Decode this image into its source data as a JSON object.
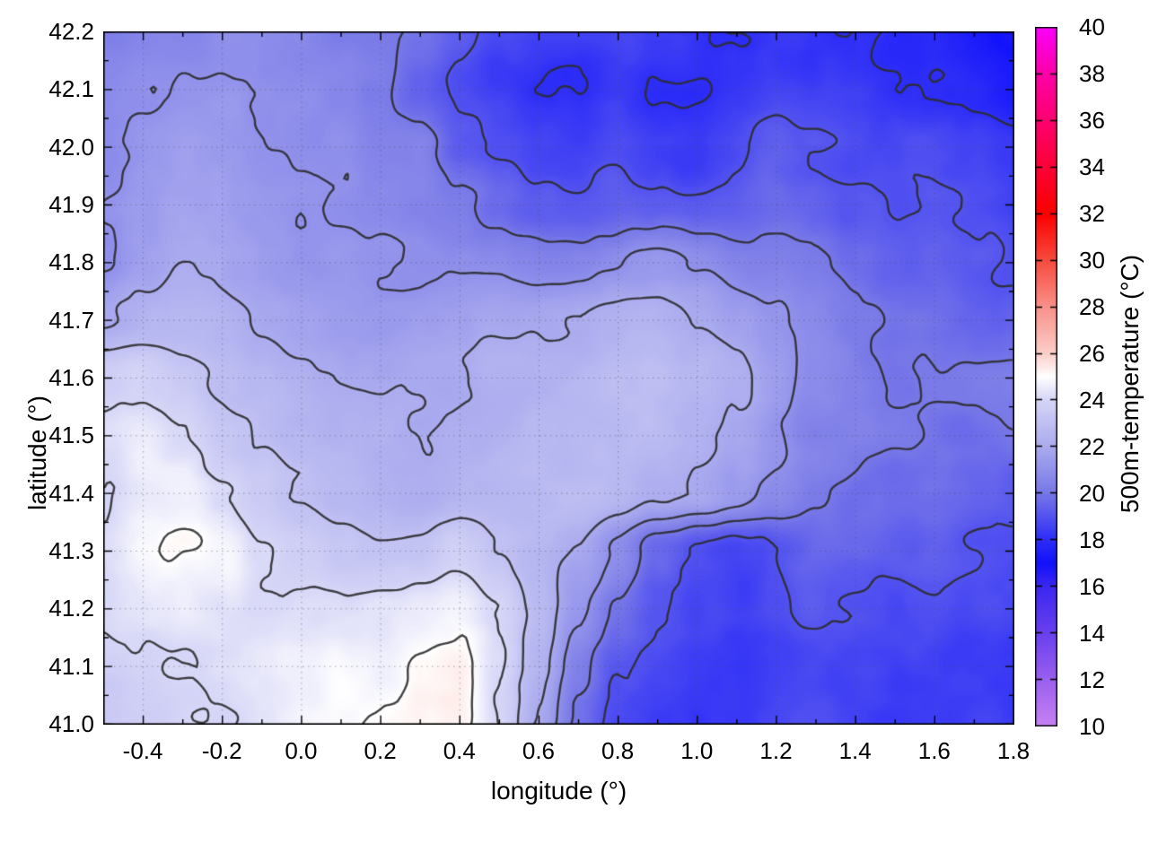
{
  "chart_data": {
    "type": "heatmap",
    "title": "",
    "xlabel": "longitude (°)",
    "ylabel": "latitude (°)",
    "colorbar_label": "500m-temperature (°C)",
    "xlim": [
      -0.5,
      1.8
    ],
    "ylim": [
      41.0,
      42.2
    ],
    "grid": true,
    "x_tick_labels": [
      "-0.4",
      "-0.2",
      "0.0",
      "0.2",
      "0.4",
      "0.6",
      "0.8",
      "1.0",
      "1.2",
      "1.4",
      "1.6",
      "1.8"
    ],
    "x_minor_step": 0.1,
    "y_tick_labels": [
      "41.0",
      "41.1",
      "41.2",
      "41.3",
      "41.4",
      "41.5",
      "41.6",
      "41.7",
      "41.8",
      "41.9",
      "42.0",
      "42.1",
      "42.2"
    ],
    "y_minor_step": 0.05,
    "colorbar": {
      "min": 10,
      "max": 40,
      "tick_labels": [
        "10",
        "12",
        "14",
        "16",
        "18",
        "20",
        "22",
        "24",
        "26",
        "28",
        "30",
        "32",
        "34",
        "36",
        "38",
        "40"
      ],
      "palette": [
        [
          10,
          "#c783f3"
        ],
        [
          12,
          "#9a60ef"
        ],
        [
          14,
          "#6a40ee"
        ],
        [
          16,
          "#3b28f0"
        ],
        [
          17,
          "#1212fc"
        ],
        [
          18,
          "#2e2ef8"
        ],
        [
          20,
          "#7878e8"
        ],
        [
          22,
          "#ababef"
        ],
        [
          24,
          "#d6d6f7"
        ],
        [
          25,
          "#ffffff"
        ],
        [
          26,
          "#fccfc9"
        ],
        [
          28,
          "#f9918a"
        ],
        [
          30,
          "#f74b3e"
        ],
        [
          32,
          "#fc0000"
        ],
        [
          34,
          "#fe0038"
        ],
        [
          36,
          "#fd0070"
        ],
        [
          38,
          "#fd00a8"
        ],
        [
          40,
          "#fb00fb"
        ]
      ]
    },
    "contour_levels": [
      18,
      19,
      20,
      21,
      22,
      23,
      24,
      25
    ],
    "contour_color": "#2c2c2c",
    "lon_values": [
      -0.5,
      -0.4,
      -0.3,
      -0.2,
      -0.1,
      0.0,
      0.1,
      0.2,
      0.3,
      0.4,
      0.5,
      0.6,
      0.7,
      0.8,
      0.9,
      1.0,
      1.1,
      1.2,
      1.3,
      1.4,
      1.5,
      1.6,
      1.7,
      1.8
    ],
    "lat_values": [
      42.2,
      42.1,
      42.0,
      41.9,
      41.8,
      41.7,
      41.6,
      41.5,
      41.4,
      41.3,
      41.2,
      41.1,
      41.0
    ],
    "temperature_grid": [
      [
        20.5,
        20.5,
        20.6,
        20.8,
        20.8,
        20.5,
        20.3,
        20.2,
        20.0,
        19.4,
        18.9,
        18.3,
        18.2,
        18.5,
        18.2,
        18.0,
        18.2,
        18.5,
        18.3,
        18.0,
        17.8,
        17.8,
        17.2,
        16.8
      ],
      [
        20.8,
        21.0,
        21.1,
        21.0,
        20.8,
        20.6,
        20.5,
        20.3,
        19.6,
        18.8,
        18.2,
        17.8,
        17.8,
        18.3,
        17.9,
        17.8,
        18.2,
        18.6,
        18.4,
        18.2,
        18.0,
        18.0,
        17.8,
        17.4
      ],
      [
        20.9,
        21.2,
        21.3,
        21.2,
        21.0,
        20.8,
        20.8,
        20.6,
        20.3,
        19.2,
        18.8,
        18.5,
        18.4,
        18.8,
        18.5,
        18.4,
        18.7,
        19.0,
        18.8,
        18.6,
        18.5,
        18.6,
        18.4,
        18.2
      ],
      [
        21.0,
        21.3,
        21.5,
        21.4,
        21.2,
        21.0,
        21.0,
        20.8,
        20.6,
        20.2,
        19.8,
        19.4,
        19.2,
        19.4,
        19.2,
        19.0,
        19.2,
        19.5,
        19.3,
        19.0,
        18.8,
        19.0,
        18.8,
        18.6
      ],
      [
        20.8,
        21.5,
        21.8,
        21.8,
        21.5,
        21.3,
        21.3,
        21.2,
        21.0,
        21.0,
        20.8,
        20.5,
        20.6,
        21.0,
        21.2,
        20.8,
        20.3,
        20.3,
        20.0,
        19.5,
        19.2,
        19.4,
        19.2,
        19.0
      ],
      [
        21.8,
        22.2,
        22.3,
        22.2,
        22.0,
        21.8,
        21.6,
        21.5,
        21.4,
        21.5,
        21.6,
        21.8,
        22.0,
        22.2,
        22.2,
        22.0,
        21.5,
        21.0,
        20.5,
        20.0,
        19.6,
        19.8,
        19.6,
        19.4
      ],
      [
        23.5,
        23.8,
        23.2,
        22.8,
        22.5,
        22.2,
        22.0,
        21.8,
        21.8,
        22.0,
        22.2,
        22.4,
        22.6,
        22.8,
        22.8,
        22.5,
        22.0,
        21.3,
        20.6,
        20.2,
        19.8,
        20.0,
        20.2,
        20.3
      ],
      [
        24.2,
        24.4,
        23.8,
        23.2,
        22.8,
        22.5,
        22.2,
        22.0,
        22.0,
        22.2,
        22.4,
        22.6,
        22.8,
        22.8,
        22.8,
        22.5,
        22.0,
        21.2,
        20.5,
        20.5,
        20.2,
        20.0,
        19.8,
        20.0
      ],
      [
        24.0,
        24.5,
        24.5,
        24.0,
        23.5,
        23.0,
        22.6,
        22.3,
        22.2,
        22.4,
        22.5,
        22.6,
        22.6,
        22.5,
        22.3,
        22.0,
        21.5,
        20.8,
        20.2,
        19.8,
        19.6,
        19.8,
        19.6,
        19.4
      ],
      [
        24.2,
        24.8,
        25.0,
        24.8,
        24.2,
        23.8,
        23.4,
        23.2,
        23.4,
        23.6,
        23.0,
        22.4,
        21.8,
        20.8,
        19.8,
        19.0,
        18.8,
        19.2,
        19.6,
        19.4,
        19.2,
        19.4,
        19.2,
        19.0
      ],
      [
        24.0,
        24.4,
        24.6,
        24.4,
        24.2,
        24.2,
        24.4,
        24.4,
        24.6,
        24.6,
        23.8,
        22.8,
        21.5,
        20.0,
        19.0,
        18.5,
        18.3,
        18.8,
        19.2,
        19.0,
        18.8,
        19.0,
        18.8,
        18.8
      ],
      [
        23.8,
        24.0,
        24.2,
        24.4,
        24.6,
        24.8,
        25.0,
        24.8,
        25.0,
        25.2,
        24.0,
        22.5,
        20.5,
        19.2,
        18.6,
        18.3,
        18.2,
        18.5,
        18.8,
        18.6,
        18.5,
        18.6,
        18.5,
        18.4
      ],
      [
        23.5,
        23.8,
        24.0,
        24.2,
        24.5,
        24.8,
        25.0,
        25.0,
        25.2,
        25.0,
        23.8,
        21.8,
        19.8,
        18.8,
        18.4,
        18.2,
        18.3,
        18.6,
        18.8,
        18.6,
        18.4,
        18.5,
        18.4,
        18.3
      ]
    ]
  }
}
